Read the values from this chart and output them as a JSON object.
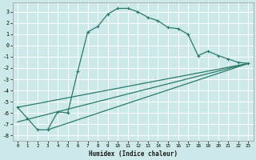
{
  "xlabel": "Humidex (Indice chaleur)",
  "bg_color": "#cde9e9",
  "grid_color": "#b0d4d4",
  "line_color": "#2a7a6a",
  "xlim": [
    -0.5,
    23.5
  ],
  "ylim": [
    -8.5,
    3.8
  ],
  "xticks": [
    0,
    1,
    2,
    3,
    4,
    5,
    6,
    7,
    8,
    9,
    10,
    11,
    12,
    13,
    14,
    15,
    16,
    17,
    18,
    19,
    20,
    21,
    22,
    23
  ],
  "yticks": [
    3,
    2,
    1,
    0,
    -1,
    -2,
    -3,
    -4,
    -5,
    -6,
    -7,
    -8
  ],
  "curve_x": [
    0,
    1,
    2,
    3,
    4,
    5,
    6,
    7,
    8,
    9,
    10,
    11,
    12,
    13,
    14,
    15,
    16,
    17,
    18,
    19,
    20,
    21,
    22,
    23
  ],
  "curve_y": [
    -5.5,
    -6.5,
    -7.5,
    -7.5,
    -5.9,
    -6.0,
    -2.3,
    1.2,
    1.7,
    2.8,
    3.3,
    3.3,
    3.0,
    2.5,
    2.2,
    1.6,
    1.5,
    1.0,
    -0.9,
    -0.5,
    -0.9,
    -1.2,
    -1.5,
    -1.6
  ],
  "line2_x": [
    0,
    23
  ],
  "line2_y": [
    -5.5,
    -1.6
  ],
  "line3_x": [
    3,
    23
  ],
  "line3_y": [
    -7.5,
    -1.6
  ],
  "line4_x": [
    0,
    23
  ],
  "line4_y": [
    -6.8,
    -1.6
  ]
}
